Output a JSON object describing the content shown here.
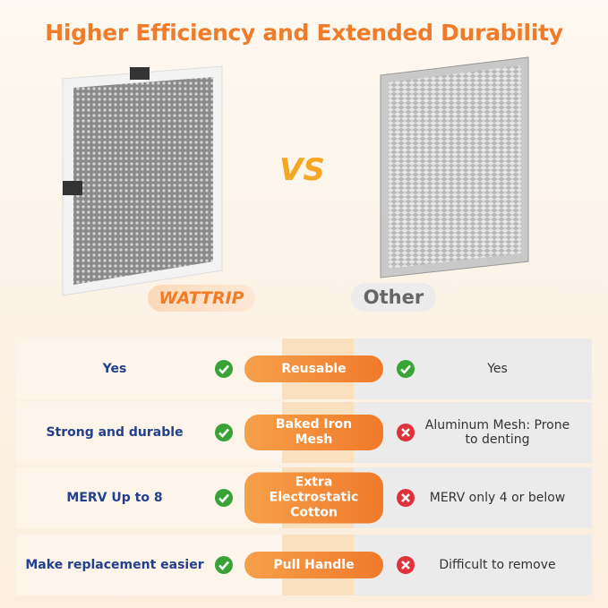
{
  "header": {
    "title": "Higher Efficiency and Extended Durability"
  },
  "products": {
    "left": "WATTRIP",
    "vs": "VS",
    "right": "Other"
  },
  "rows": [
    {
      "left": "Yes",
      "feature": "Reusable",
      "right": "Yes",
      "right_ok": true
    },
    {
      "left": "Strong and durable",
      "feature": "Baked Iron Mesh",
      "right": "Aluminum Mesh: Prone to denting",
      "right_ok": false
    },
    {
      "left": "MERV Up to 8",
      "feature": "Extra Electrostatic Cotton",
      "right": "MERV only 4 or below",
      "right_ok": false
    },
    {
      "left": "Make replacement easier",
      "feature": "Pull Handle",
      "right": "Difficult to remove",
      "right_ok": false
    }
  ]
}
